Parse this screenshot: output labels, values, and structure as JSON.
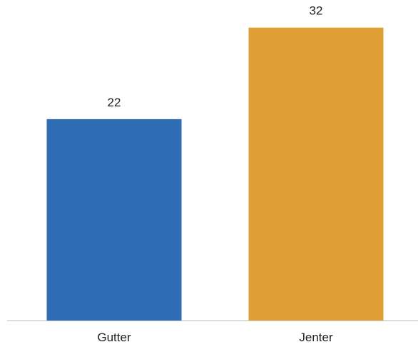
{
  "chart_data": {
    "type": "bar",
    "categories": [
      "Gutter",
      "Jenter"
    ],
    "values": [
      22,
      32
    ],
    "colors": [
      "#2e6db4",
      "#df9f36"
    ],
    "data_labels": [
      "22",
      "32"
    ],
    "title": "",
    "xlabel": "",
    "ylabel": "",
    "ylim": [
      0,
      34
    ],
    "grid": false,
    "legend": "none"
  }
}
